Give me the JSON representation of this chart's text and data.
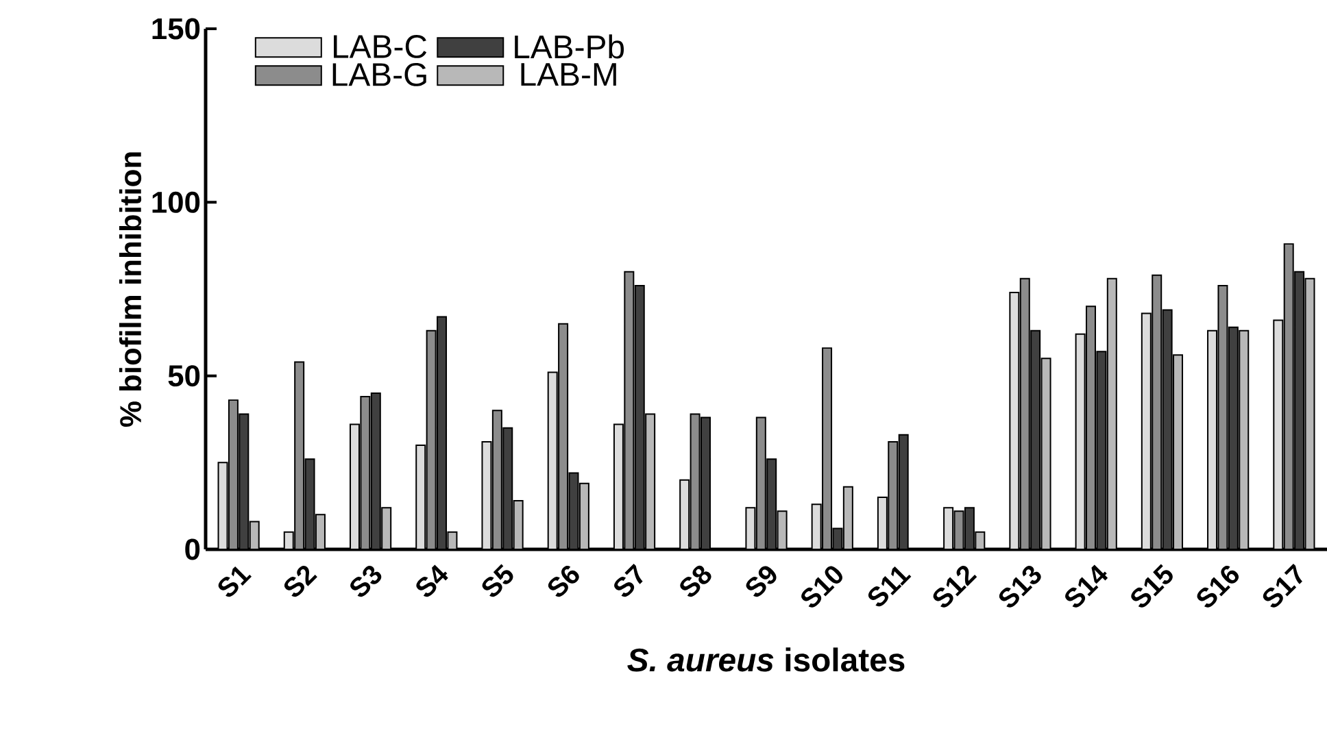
{
  "chart_data": {
    "type": "bar",
    "categories": [
      "S1",
      "S2",
      "S3",
      "S4",
      "S5",
      "S6",
      "S7",
      "S8",
      "S9",
      "S10",
      "S11",
      "S12",
      "S13",
      "S14",
      "S15",
      "S16",
      "S17"
    ],
    "series": [
      {
        "name": "LAB-C",
        "color": "#dcdcdc",
        "values": [
          25,
          5,
          36,
          30,
          31,
          51,
          36,
          20,
          12,
          13,
          15,
          12,
          74,
          62,
          68,
          63,
          66
        ]
      },
      {
        "name": "LAB-G",
        "color": "#8c8c8c",
        "values": [
          43,
          54,
          44,
          63,
          40,
          65,
          80,
          39,
          38,
          58,
          31,
          11,
          78,
          70,
          79,
          76,
          88
        ]
      },
      {
        "name": "LAB-Pb",
        "color": "#404040",
        "values": [
          39,
          26,
          45,
          67,
          35,
          22,
          76,
          38,
          26,
          6,
          33,
          12,
          63,
          57,
          69,
          64,
          80
        ]
      },
      {
        "name": "LAB-M",
        "color": "#b8b8b8",
        "values": [
          8,
          10,
          12,
          5,
          14,
          19,
          39,
          0,
          11,
          18,
          0,
          5,
          55,
          78,
          56,
          63,
          78
        ]
      }
    ],
    "xlabel": "*S. aureus* isolates",
    "ylabel": "% biofilm inhibition",
    "ylim": [
      0,
      150
    ],
    "yticks": [
      0,
      50,
      100,
      150
    ],
    "grid": false,
    "legend": "top left"
  }
}
